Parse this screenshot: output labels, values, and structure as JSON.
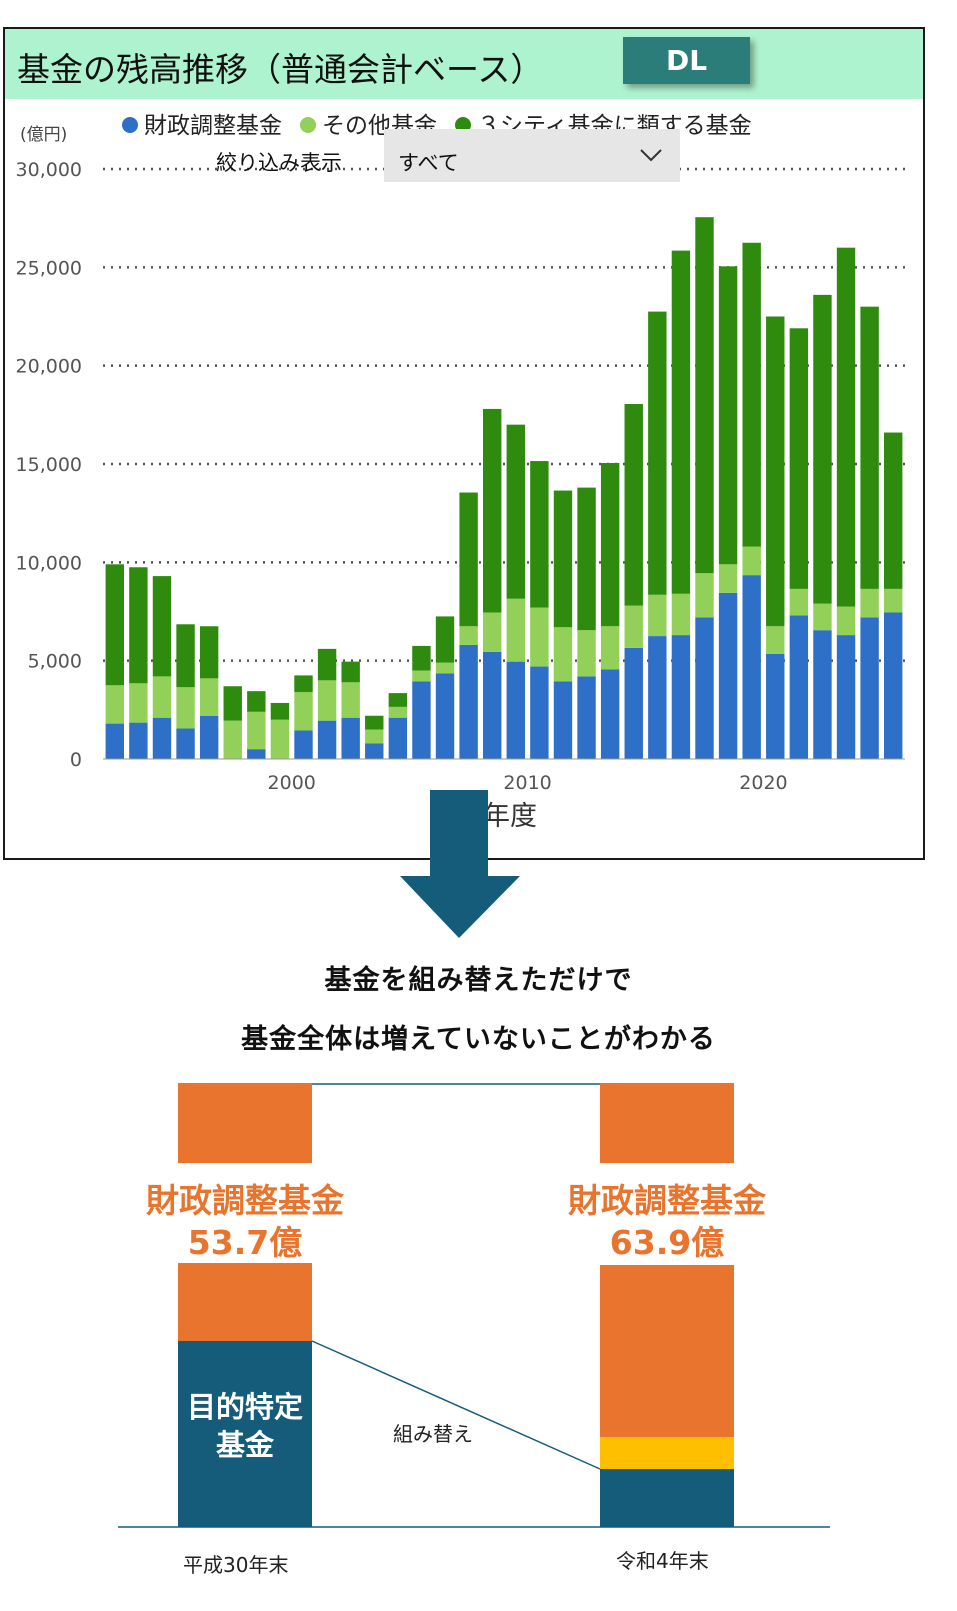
{
  "panel": {
    "title": "基金の残高推移（普通会計ベース）",
    "dl_button": "DL",
    "filter_label": "絞り込み表示",
    "filter_value": "すべて"
  },
  "chart_data": {
    "type": "bar",
    "stacked": true,
    "unit_label": "(億円)",
    "xlabel": "年度",
    "ylim": [
      0,
      30000
    ],
    "yticks": [
      0,
      5000,
      10000,
      15000,
      20000,
      25000,
      30000
    ],
    "ytick_labels": [
      "0",
      "5,000",
      "10,000",
      "15,000",
      "20,000",
      "25,000",
      "30,000"
    ],
    "xticks": [
      2000,
      2010,
      2020
    ],
    "grid": "dotted",
    "legend_position": "top",
    "x": [
      1992,
      1993,
      1994,
      1995,
      1996,
      1997,
      1998,
      1999,
      2000,
      2001,
      2002,
      2003,
      2004,
      2005,
      2006,
      2007,
      2008,
      2009,
      2010,
      2011,
      2012,
      2013,
      2014,
      2015,
      2016,
      2017,
      2018,
      2019,
      2020,
      2021,
      2022,
      2023,
      2024,
      2025
    ],
    "series": [
      {
        "name": "財政調整基金",
        "color": "#2e6fc7",
        "values": [
          1800,
          1850,
          2100,
          1550,
          2200,
          0,
          500,
          0,
          1450,
          1950,
          2100,
          800,
          2100,
          3950,
          4350,
          5800,
          5450,
          4950,
          4700,
          3950,
          4200,
          4550,
          5650,
          6250,
          6300,
          7200,
          8450,
          9350,
          5350,
          7300,
          6550,
          6300,
          7200,
          7450
        ]
      },
      {
        "name": "その他基金",
        "color": "#93d05a",
        "values": [
          1950,
          2000,
          2100,
          2100,
          1900,
          1950,
          1900,
          2000,
          1950,
          2050,
          1800,
          700,
          550,
          550,
          550,
          950,
          2000,
          3200,
          3000,
          2750,
          2350,
          2200,
          2150,
          2100,
          2100,
          2250,
          1450,
          1450,
          1400,
          1350,
          1350,
          1450,
          1450,
          1200
        ]
      },
      {
        "name": "３シティ基金に類する基金",
        "color": "#2e8b0e",
        "values": [
          6150,
          5900,
          5100,
          3200,
          2650,
          1750,
          1050,
          850,
          850,
          1600,
          1050,
          700,
          700,
          1250,
          2350,
          6800,
          10350,
          8850,
          7450,
          6950,
          7250,
          8300,
          10250,
          14400,
          17450,
          18100,
          15150,
          15450,
          15750,
          13250,
          15700,
          18250,
          14350,
          7950
        ]
      }
    ]
  },
  "headline": {
    "line1": "基金を組み替えただけで",
    "line2": "基金全体は増えていないことがわかる"
  },
  "comparison": {
    "left": {
      "period": "平成30年末",
      "overlay_name": "財政調整基金",
      "overlay_value": "53.7億",
      "inner_label": "目的特定\n基金"
    },
    "right": {
      "period": "令和4年末",
      "overlay_name": "財政調整基金",
      "overlay_value": "63.9億"
    },
    "swap_label": "組み替え",
    "colors": {
      "orange": "#e8742e",
      "navy": "#155b7a",
      "yellow": "#fdbf00"
    }
  }
}
